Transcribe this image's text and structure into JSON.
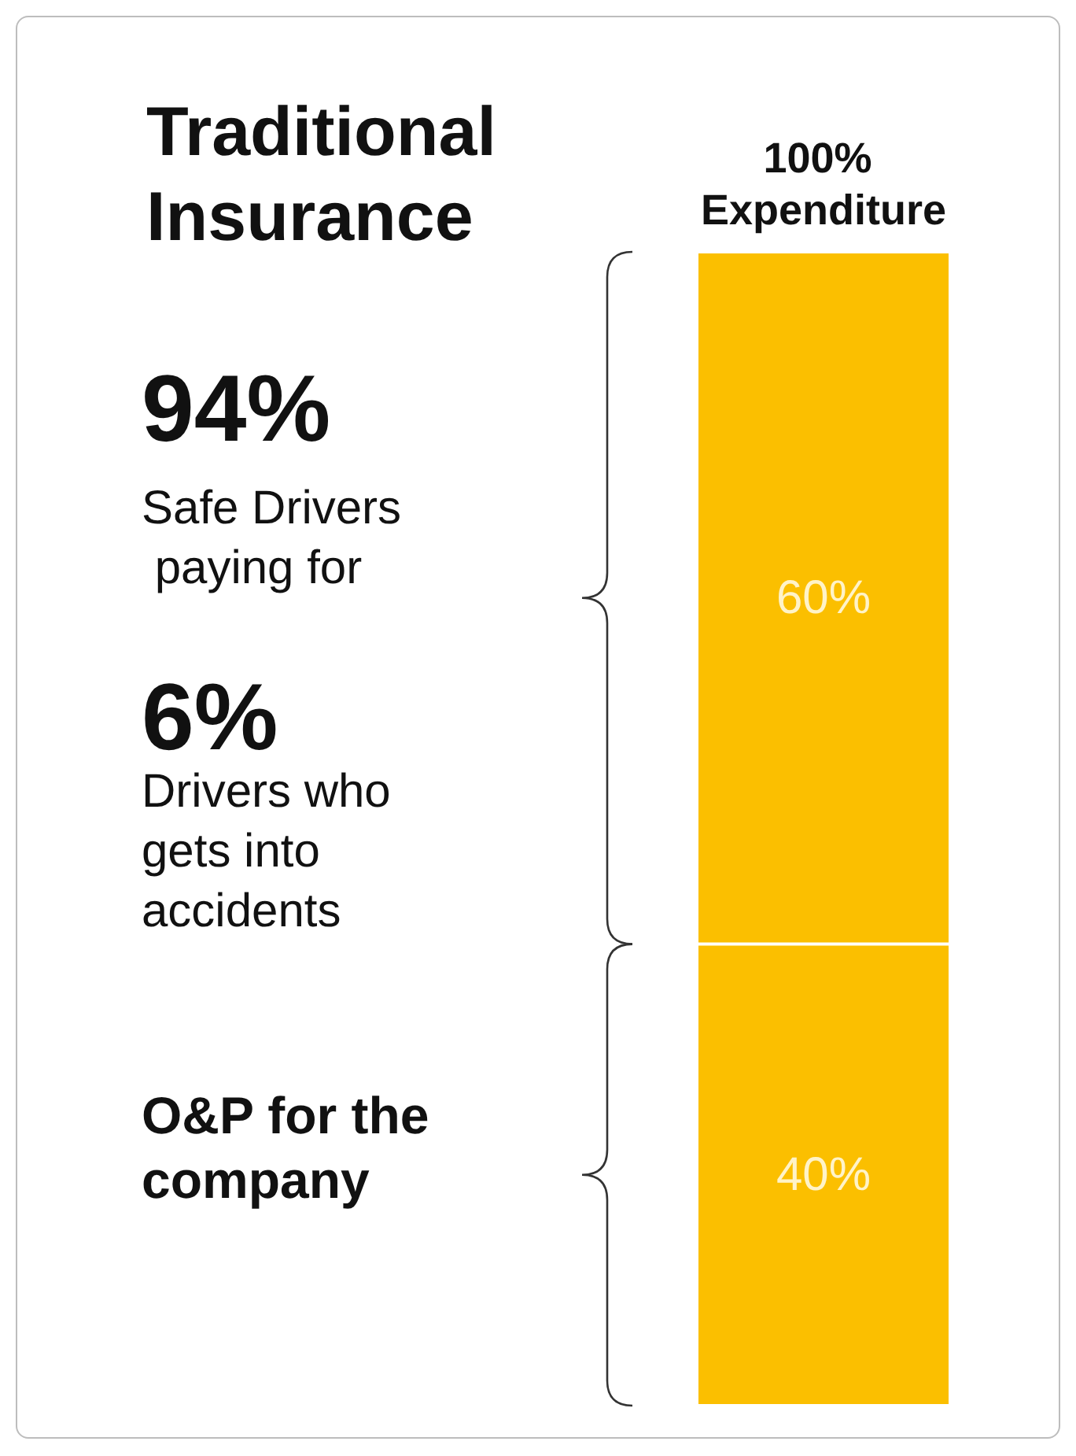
{
  "chart_data": {
    "type": "bar",
    "stacked": true,
    "title": "Traditional Insurance",
    "categories": [
      "100% Expenditure"
    ],
    "series": [
      {
        "color": "#fbbf00",
        "values": [
          40
        ],
        "value_labels": [
          "40%"
        ]
      },
      {
        "color": "#fbbf00",
        "values": [
          60
        ],
        "value_labels": [
          "60%"
        ]
      }
    ],
    "annotations": [
      "94%",
      "Safe Drivers paying for",
      "6%",
      "Drivers who gets into accidents",
      "O&P for the company"
    ]
  }
}
